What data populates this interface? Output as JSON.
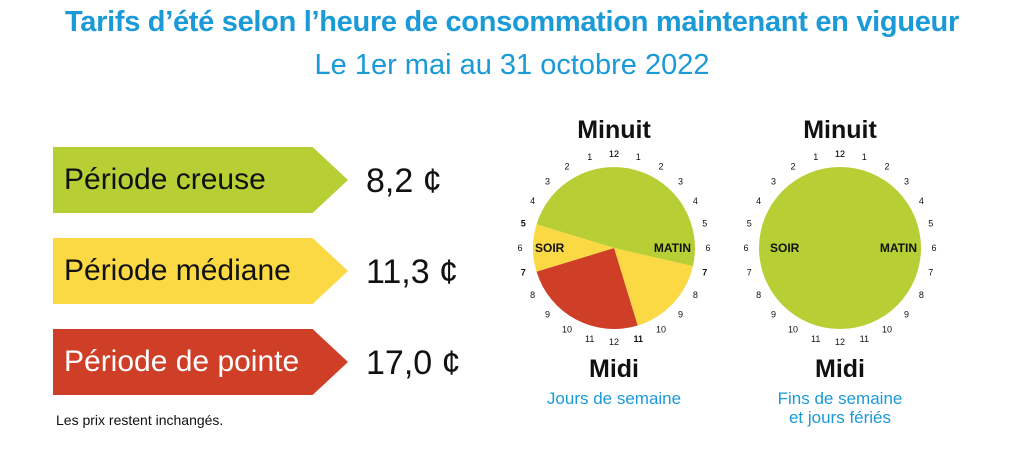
{
  "colors": {
    "accent": "#1a9ad6",
    "creuse": "#b7cf34",
    "mediane": "#fbd944",
    "pointe": "#cf3e27",
    "white_text": "#ffffff"
  },
  "header": {
    "title": "Tarifs d’été selon l’heure de consommation maintenant en vigueur",
    "subtitle": "Le 1er mai au 31 octobre 2022"
  },
  "periods": [
    {
      "label": "Période creuse",
      "price": "8,2 ¢"
    },
    {
      "label": "Période médiane",
      "price": "11,3 ¢"
    },
    {
      "label": "Période de pointe",
      "price": "17,0 ¢"
    }
  ],
  "note": "Les prix restent inchangés.",
  "clocks": [
    {
      "top_label": "Minuit",
      "bottom_label": "Midi",
      "caption_lines": [
        "Jours de semaine"
      ],
      "left_label": "SOIR",
      "right_label": "MATIN",
      "hours_right": [
        "12",
        "1",
        "2",
        "3",
        "4",
        "5",
        "6",
        "7",
        "8",
        "9",
        "10",
        "11"
      ],
      "hours_left": [
        "11",
        "10",
        "9",
        "8",
        "7",
        "6",
        "5",
        "4",
        "3",
        "2",
        "1",
        "12"
      ],
      "highlighted_hours": [
        "7",
        "5",
        "7",
        "11"
      ]
    },
    {
      "top_label": "Minuit",
      "bottom_label": "Midi",
      "caption_lines": [
        "Fins de semaine",
        "et jours fériés"
      ],
      "left_label": "SOIR",
      "right_label": "MATIN",
      "hours_right": [
        "12",
        "1",
        "2",
        "3",
        "4",
        "5",
        "6",
        "7",
        "8",
        "9",
        "10",
        "11"
      ],
      "hours_left": [
        "11",
        "10",
        "9",
        "8",
        "7",
        "6",
        "5",
        "4",
        "3",
        "2",
        "1",
        "12"
      ],
      "highlighted_hours": []
    }
  ]
}
